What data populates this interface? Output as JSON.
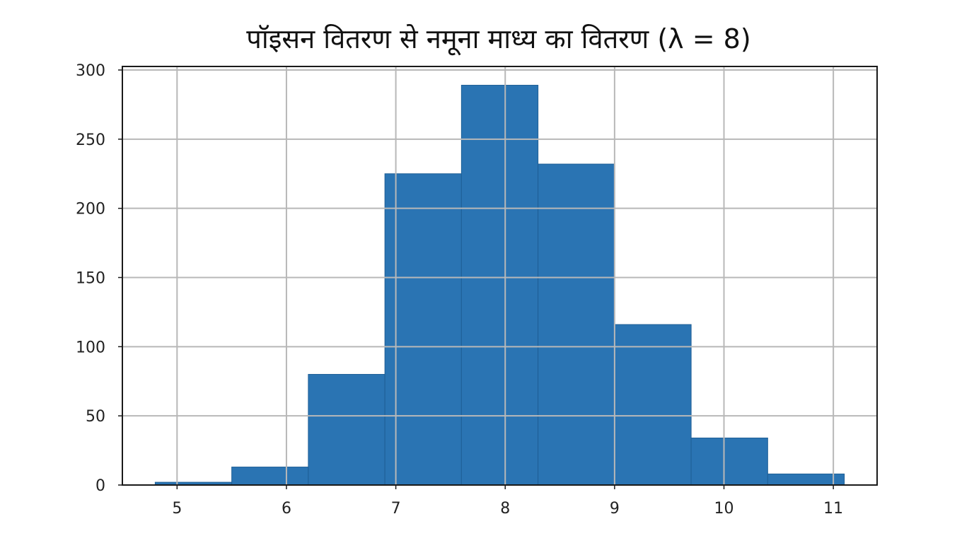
{
  "chart_data": {
    "type": "bar",
    "title": "पॉइसन वितरण से नमूना माध्य का वितरण (λ = 8)",
    "xlabel": "",
    "ylabel": "",
    "bar_color": "#2a74b3",
    "bar_edge_color": "#1f5f96",
    "grid": true,
    "xlim": [
      4.5,
      11.4
    ],
    "ylim": [
      0,
      300
    ],
    "x_ticks": [
      5,
      6,
      7,
      8,
      9,
      10,
      11
    ],
    "y_ticks": [
      0,
      50,
      100,
      150,
      200,
      250,
      300
    ],
    "bins": [
      {
        "x0": 4.8,
        "x1": 5.5,
        "value": 2
      },
      {
        "x0": 5.5,
        "x1": 6.2,
        "value": 13
      },
      {
        "x0": 6.2,
        "x1": 6.9,
        "value": 80
      },
      {
        "x0": 6.9,
        "x1": 7.6,
        "value": 225
      },
      {
        "x0": 7.6,
        "x1": 8.3,
        "value": 289
      },
      {
        "x0": 8.3,
        "x1": 9.0,
        "value": 232
      },
      {
        "x0": 9.0,
        "x1": 9.7,
        "value": 116
      },
      {
        "x0": 9.7,
        "x1": 10.4,
        "value": 34
      },
      {
        "x0": 10.4,
        "x1": 11.1,
        "value": 8
      }
    ]
  }
}
